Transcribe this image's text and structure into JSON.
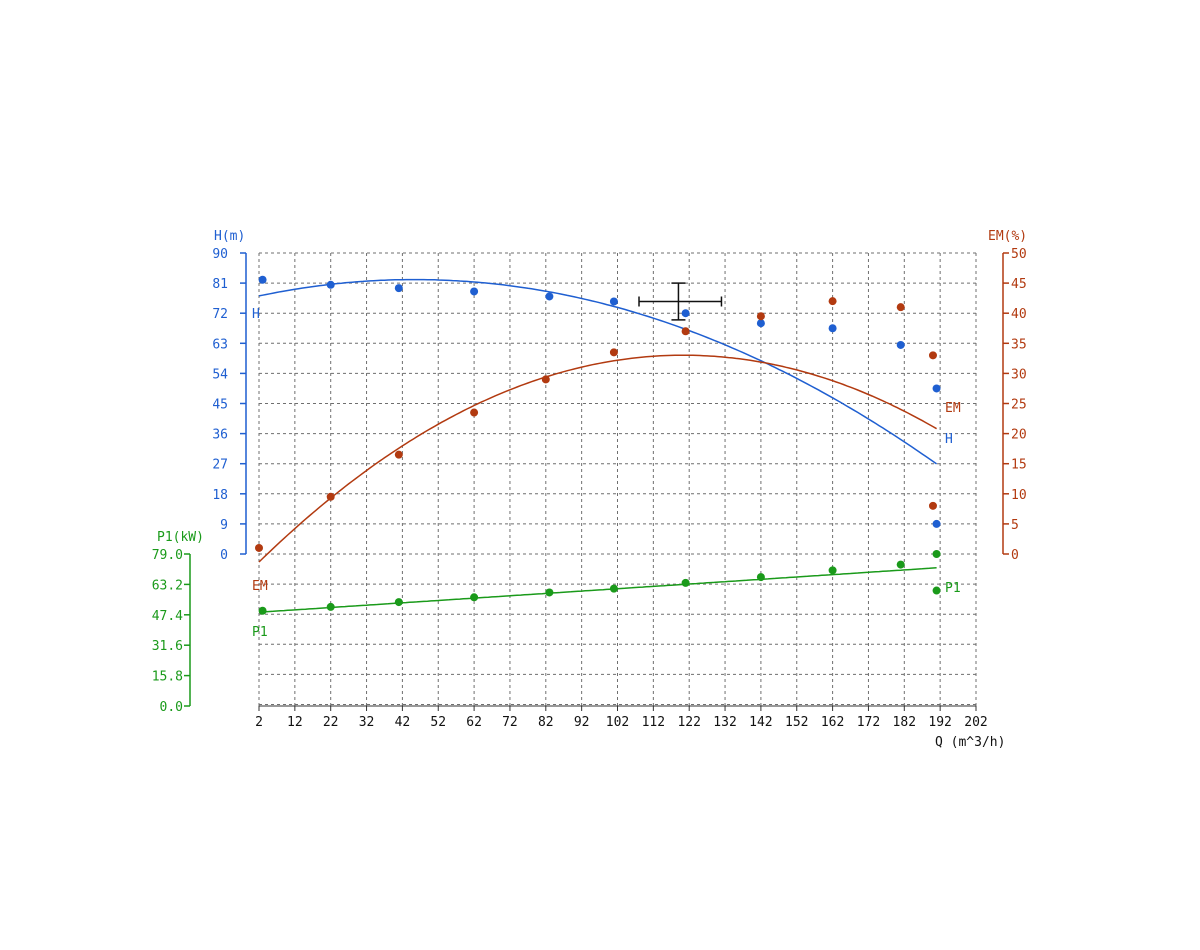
{
  "colors": {
    "H": "#1f5fd1",
    "EM": "#b23a10",
    "P1": "#1a9a1a",
    "grid": "#6f6f6f",
    "axis": "#333333",
    "marker": "#111111"
  },
  "chart_data": {
    "type": "scatter",
    "x_axis": {
      "label": "Q (m^3/h)",
      "range": [
        2,
        202
      ],
      "ticks": [
        "2",
        "12",
        "22",
        "32",
        "42",
        "52",
        "62",
        "72",
        "82",
        "92",
        "102",
        "112",
        "122",
        "132",
        "142",
        "152",
        "162",
        "172",
        "182",
        "192",
        "202"
      ]
    },
    "y_axes": {
      "H": {
        "label": "H(m)",
        "range": [
          0,
          90
        ],
        "ticks": [
          "0",
          "9",
          "18",
          "27",
          "36",
          "45",
          "54",
          "63",
          "72",
          "81",
          "90"
        ]
      },
      "EM": {
        "label": "EM(%)",
        "range": [
          0,
          50
        ],
        "ticks": [
          "0",
          "5",
          "10",
          "15",
          "20",
          "25",
          "30",
          "35",
          "40",
          "45",
          "50"
        ]
      },
      "P1": {
        "label": "P1(kW)",
        "range": [
          0,
          79
        ],
        "ticks": [
          "0.0",
          "15.8",
          "31.6",
          "47.4",
          "63.2",
          "79.0"
        ]
      }
    },
    "grid": true,
    "series": [
      {
        "name": "H",
        "axis": "H",
        "points": [
          {
            "x": 3,
            "y": 82
          },
          {
            "x": 22,
            "y": 80.5
          },
          {
            "x": 41,
            "y": 79.5
          },
          {
            "x": 62,
            "y": 78.5
          },
          {
            "x": 83,
            "y": 77
          },
          {
            "x": 101,
            "y": 75.5
          },
          {
            "x": 121,
            "y": 72
          },
          {
            "x": 142,
            "y": 69
          },
          {
            "x": 162,
            "y": 67.5
          },
          {
            "x": 181,
            "y": 62.5
          },
          {
            "x": 191,
            "y": 49.5
          },
          {
            "x": 191,
            "y": 9
          }
        ],
        "fit": {
          "from": 2,
          "to": 191,
          "coeffs": [
            76.7,
            0.236,
            -0.0026
          ]
        },
        "end_labels": [
          "H",
          "H"
        ]
      },
      {
        "name": "EM",
        "axis": "EM",
        "points": [
          {
            "x": 2,
            "y": 1
          },
          {
            "x": 22,
            "y": 9.5
          },
          {
            "x": 41,
            "y": 16.5
          },
          {
            "x": 62,
            "y": 23.5
          },
          {
            "x": 82,
            "y": 29
          },
          {
            "x": 101,
            "y": 33.5
          },
          {
            "x": 121,
            "y": 37
          },
          {
            "x": 142,
            "y": 39.5
          },
          {
            "x": 162,
            "y": 42
          },
          {
            "x": 181,
            "y": 41
          },
          {
            "x": 190,
            "y": 33
          },
          {
            "x": 190,
            "y": 8
          }
        ],
        "fit": {
          "from": 2,
          "to": 191,
          "coeffs": [
            -2.5,
            0.59,
            -0.00245
          ]
        },
        "end_labels": [
          "EM",
          "EM"
        ]
      },
      {
        "name": "P1",
        "axis": "P1",
        "points": [
          {
            "x": 3,
            "y": 49.5
          },
          {
            "x": 22,
            "y": 51.5
          },
          {
            "x": 41,
            "y": 54
          },
          {
            "x": 62,
            "y": 56.5
          },
          {
            "x": 83,
            "y": 59
          },
          {
            "x": 101,
            "y": 61
          },
          {
            "x": 121,
            "y": 64
          },
          {
            "x": 142,
            "y": 67
          },
          {
            "x": 162,
            "y": 70.5
          },
          {
            "x": 181,
            "y": 73.5
          },
          {
            "x": 191,
            "y": 79
          },
          {
            "x": 191,
            "y": 60
          }
        ],
        "fit": {
          "from": 2,
          "to": 191,
          "coeffs": [
            48.5,
            0.1221,
            0
          ]
        },
        "end_labels": [
          "P1",
          "P1"
        ]
      }
    ],
    "operating_point": {
      "x": 119,
      "y_H": 75.5,
      "x_err": [
        108,
        131
      ],
      "y_err": [
        70,
        81
      ]
    }
  }
}
